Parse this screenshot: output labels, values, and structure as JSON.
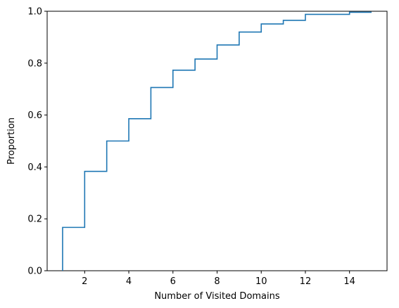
{
  "chart_data": {
    "type": "line",
    "title": "",
    "xlabel": "Number of Visited Domains",
    "ylabel": "Proportion",
    "xlim": [
      0.3,
      15.7
    ],
    "ylim": [
      0,
      1
    ],
    "grid": false,
    "legend": "none",
    "line_color": "#1f77b4",
    "x_ticks": [
      2,
      4,
      6,
      8,
      10,
      12,
      14
    ],
    "y_ticks": [
      0.0,
      0.2,
      0.4,
      0.6,
      0.8,
      1.0
    ],
    "series": [
      {
        "x": [
          1,
          2,
          3,
          4,
          5,
          6,
          7,
          8,
          9,
          10,
          11,
          12,
          13,
          14,
          15
        ],
        "y": [
          0.167,
          0.383,
          0.5,
          0.586,
          0.706,
          0.773,
          0.816,
          0.87,
          0.92,
          0.951,
          0.965,
          0.988,
          0.988,
          0.996,
          0.996
        ]
      }
    ]
  }
}
